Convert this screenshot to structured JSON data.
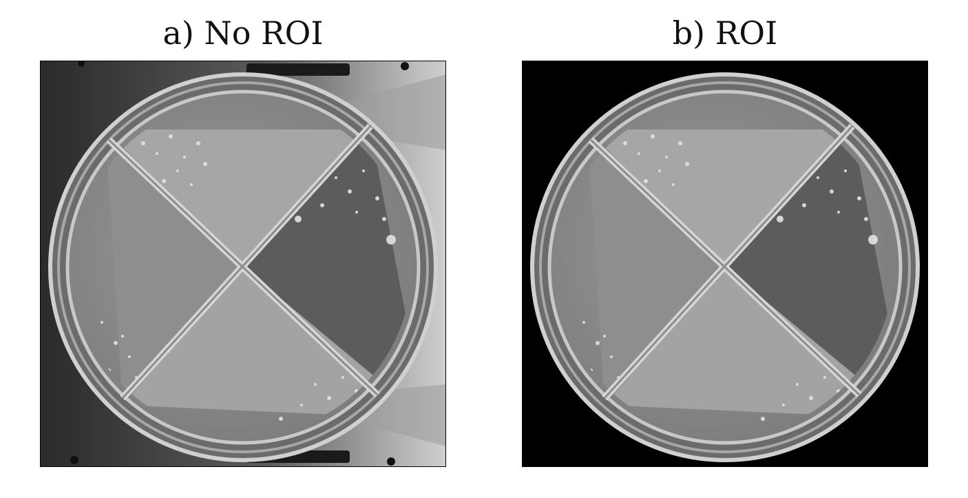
{
  "figure": {
    "panels": [
      {
        "caption": "a) No ROI",
        "background": "photo-with-holder"
      },
      {
        "caption": "b) ROI",
        "background": "black-mask"
      }
    ],
    "colors": {
      "mask_black": "#000000",
      "holder_dark": "#2c2c2c",
      "holder_light": "#bdbdbd",
      "agar_gray": "#8a8a8a",
      "agar_dark": "#5e5e5e",
      "rim_light": "#d8d8d8"
    }
  }
}
